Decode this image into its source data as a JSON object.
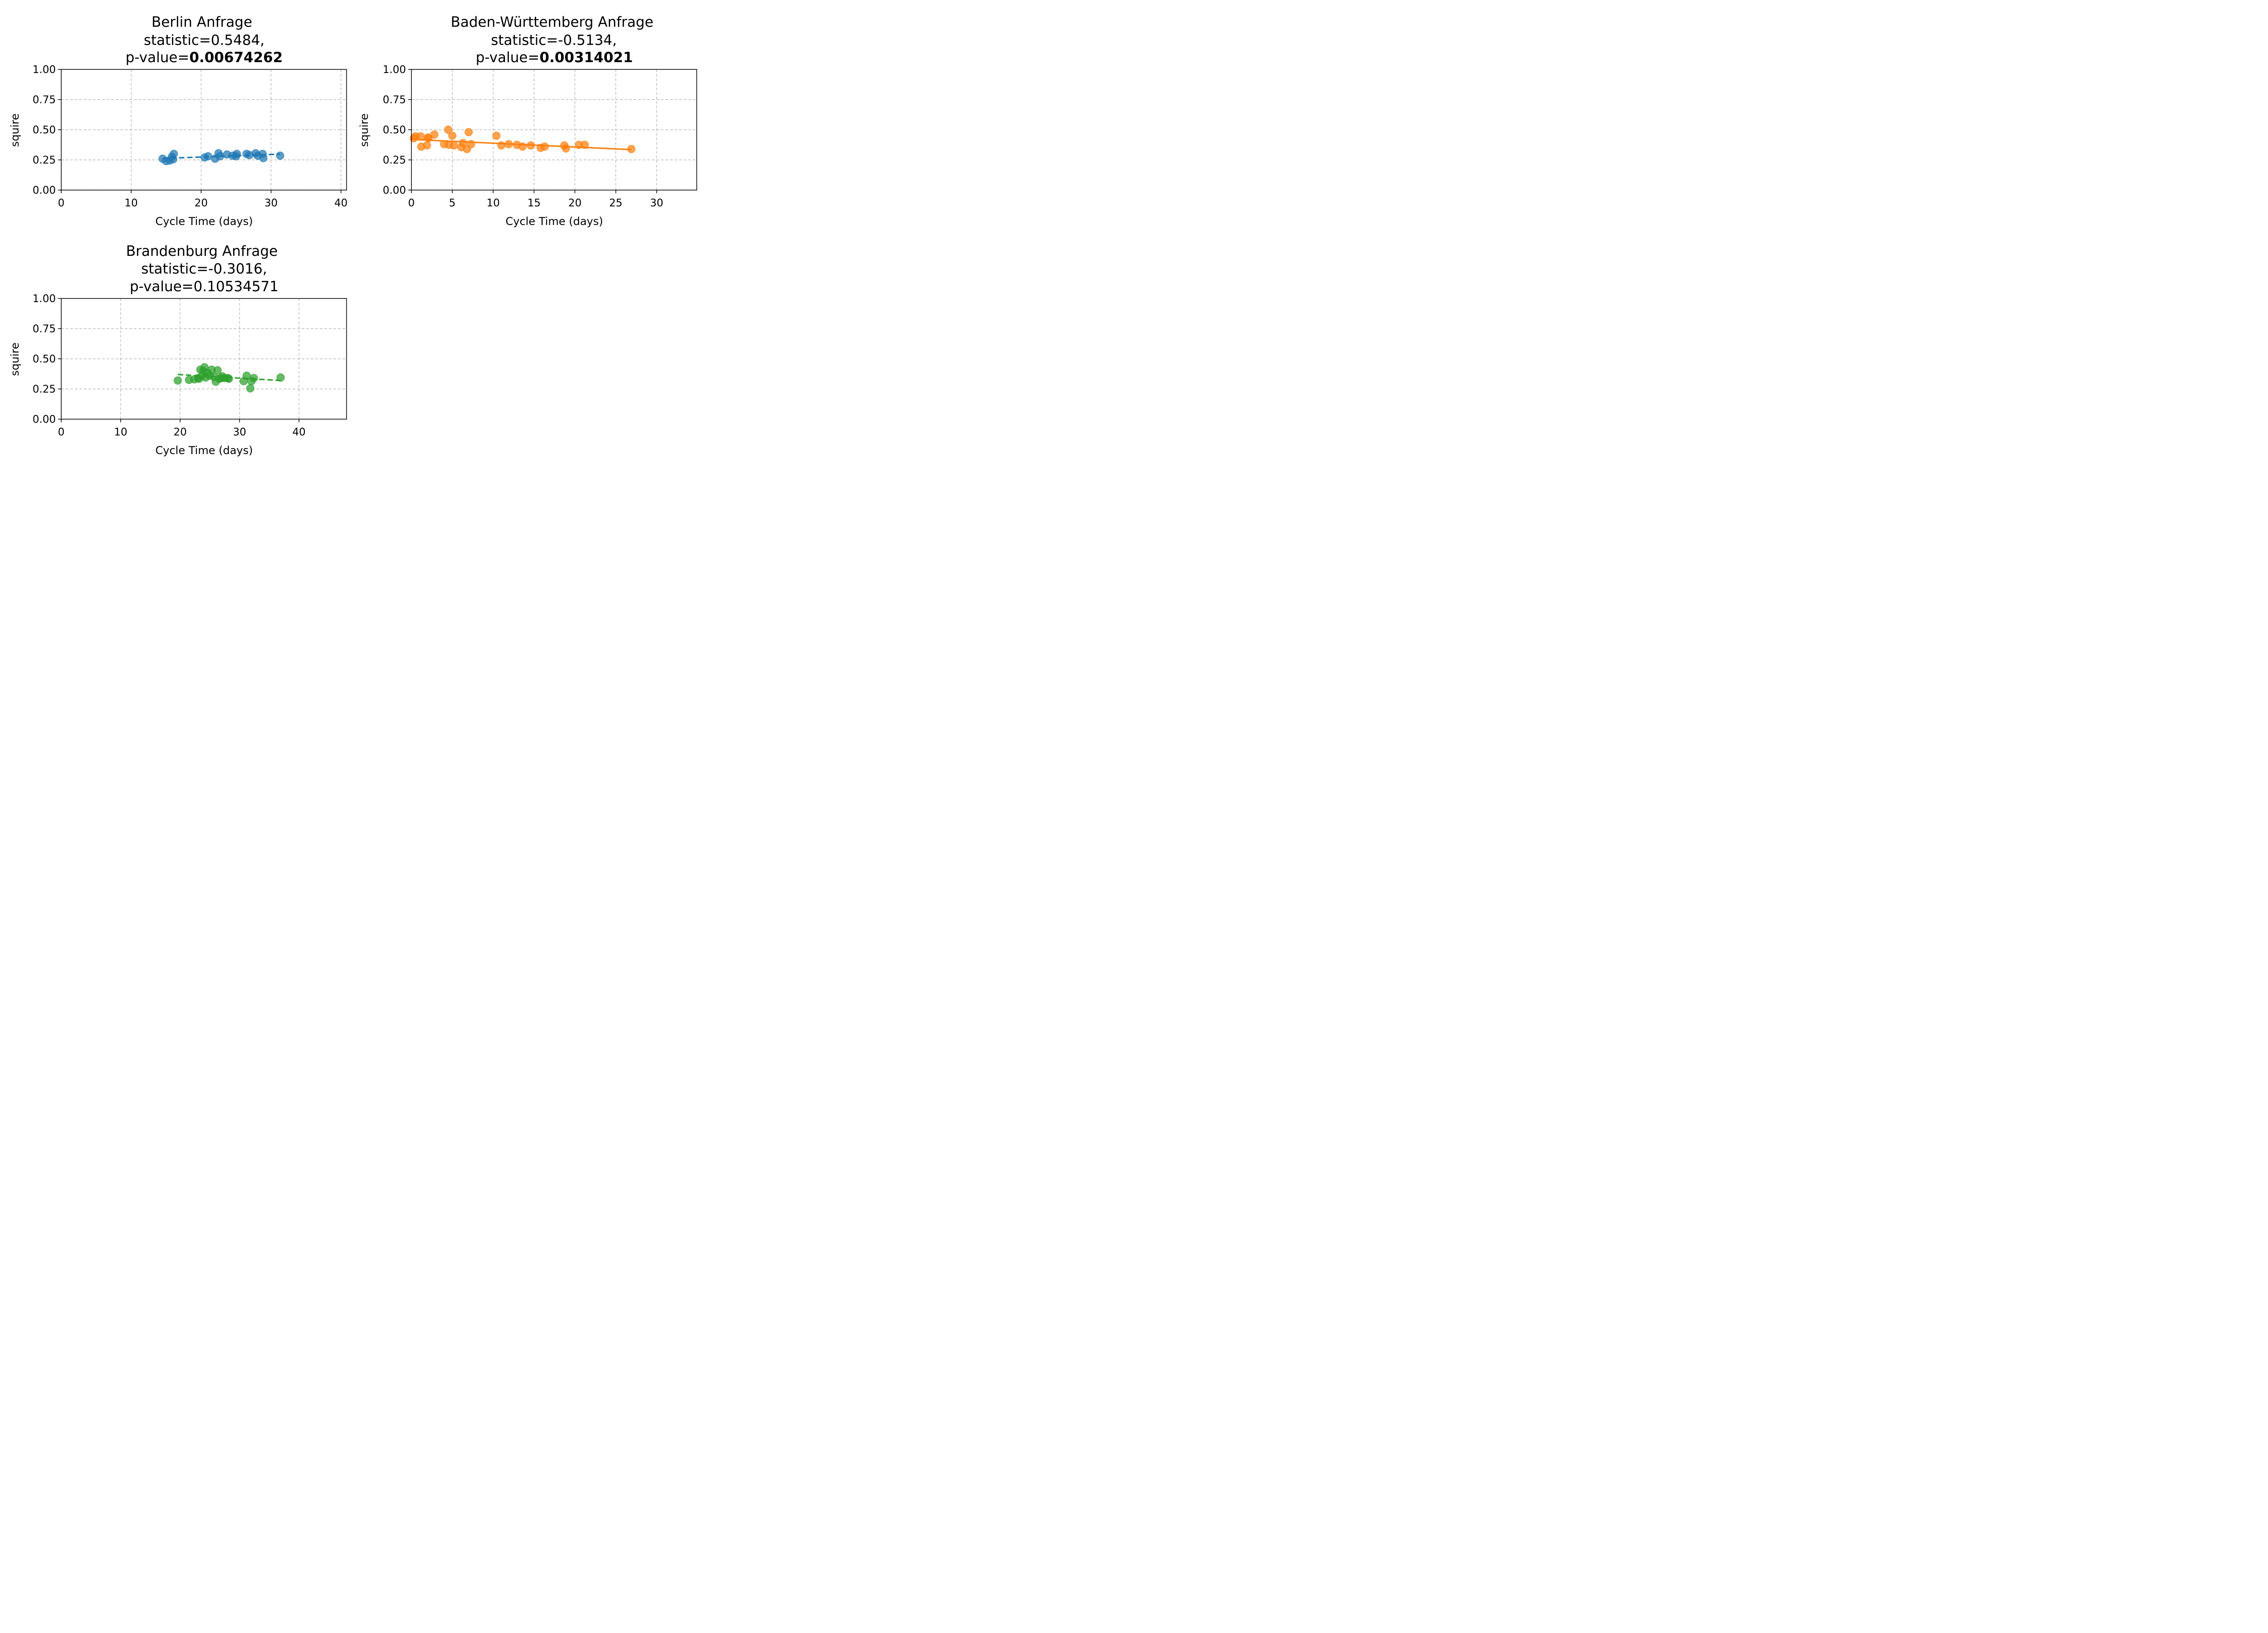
{
  "chart_data": [
    {
      "type": "scatter",
      "title_line1": "Berlin Anfrage",
      "title_line2": "statistic=0.5484,",
      "title_line3_prefix": "p-value=",
      "title_line3_value": "0.00674262",
      "pvalue_bold": true,
      "xlabel": "Cycle Time (days)",
      "ylabel": "squire",
      "xlim": [
        0,
        40.8
      ],
      "ylim": [
        0,
        1
      ],
      "xticks": [
        "0",
        "10",
        "20",
        "30",
        "40"
      ],
      "yticks": [
        "0.00",
        "0.25",
        "0.50",
        "0.75",
        "1.00"
      ],
      "grid": true,
      "color": "#1f77b4",
      "fit_style": "dashed",
      "fit": {
        "x": [
          14.5,
          31.3
        ],
        "y": [
          0.262,
          0.298
        ]
      },
      "points": {
        "x": [
          14.5,
          15.0,
          15.5,
          15.8,
          16.0,
          16.1,
          20.5,
          21.0,
          22.0,
          22.5,
          22.7,
          23.7,
          24.5,
          25.0,
          25.1,
          26.5,
          26.9,
          27.8,
          28.1,
          28.8,
          28.9,
          31.3
        ],
        "y": [
          0.26,
          0.24,
          0.245,
          0.275,
          0.255,
          0.3,
          0.27,
          0.28,
          0.26,
          0.305,
          0.28,
          0.295,
          0.285,
          0.28,
          0.3,
          0.3,
          0.29,
          0.305,
          0.285,
          0.3,
          0.265,
          0.285
        ]
      }
    },
    {
      "type": "scatter",
      "title_line1": "Baden-Württemberg Anfrage",
      "title_line2": "statistic=-0.5134,",
      "title_line3_prefix": "p-value=",
      "title_line3_value": "0.00314021",
      "pvalue_bold": true,
      "xlabel": "Cycle Time (days)",
      "ylabel": "squire",
      "xlim": [
        0,
        34.9
      ],
      "ylim": [
        0,
        1
      ],
      "xticks": [
        "0",
        "5",
        "10",
        "15",
        "20",
        "25",
        "30"
      ],
      "yticks": [
        "0.00",
        "0.25",
        "0.50",
        "0.75",
        "1.00"
      ],
      "grid": true,
      "color": "#ff7f0e",
      "fit_style": "solid",
      "fit": {
        "x": [
          0.0,
          26.9
        ],
        "y": [
          0.42,
          0.335
        ]
      },
      "points": {
        "x": [
          0.3,
          0.5,
          1.1,
          1.2,
          1.9,
          2.0,
          2.1,
          2.8,
          4.0,
          4.5,
          4.6,
          5.0,
          5.2,
          6.1,
          6.3,
          6.8,
          7.0,
          7.3,
          10.4,
          11.0,
          11.9,
          12.9,
          13.6,
          14.6,
          15.8,
          16.3,
          18.7,
          18.9,
          20.5,
          21.2,
          26.9
        ],
        "y": [
          0.43,
          0.445,
          0.445,
          0.36,
          0.37,
          0.435,
          0.43,
          0.46,
          0.38,
          0.5,
          0.375,
          0.45,
          0.37,
          0.355,
          0.39,
          0.34,
          0.48,
          0.38,
          0.45,
          0.37,
          0.38,
          0.375,
          0.36,
          0.37,
          0.35,
          0.36,
          0.37,
          0.345,
          0.375,
          0.375,
          0.34
        ]
      }
    },
    {
      "type": "scatter",
      "title_line1": "Brandenburg Anfrage",
      "title_line2": "statistic=-0.3016,",
      "title_line3_prefix": "p-value=",
      "title_line3_value": "0.10534571",
      "pvalue_bold": false,
      "xlabel": "Cycle Time (days)",
      "ylabel": "squire",
      "xlim": [
        0,
        48
      ],
      "ylim": [
        0,
        1
      ],
      "xticks": [
        "0",
        "10",
        "20",
        "30",
        "40"
      ],
      "yticks": [
        "0.00",
        "0.25",
        "0.50",
        "0.75",
        "1.00"
      ],
      "grid": true,
      "color": "#2ca02c",
      "fit_style": "dashed",
      "fit": {
        "x": [
          19.6,
          36.9
        ],
        "y": [
          0.37,
          0.32
        ]
      },
      "points": {
        "x": [
          19.6,
          21.5,
          22.4,
          23.0,
          23.2,
          23.4,
          23.7,
          23.9,
          24.1,
          24.3,
          24.6,
          25.0,
          25.3,
          25.7,
          26.0,
          26.3,
          26.6,
          26.9,
          27.1,
          27.5,
          28.0,
          28.2,
          30.7,
          31.2,
          31.8,
          32.0,
          32.4,
          36.9
        ],
        "y": [
          0.32,
          0.325,
          0.33,
          0.34,
          0.335,
          0.41,
          0.36,
          0.4,
          0.43,
          0.345,
          0.385,
          0.36,
          0.41,
          0.35,
          0.31,
          0.405,
          0.335,
          0.34,
          0.355,
          0.34,
          0.34,
          0.335,
          0.315,
          0.36,
          0.255,
          0.315,
          0.34,
          0.345
        ]
      }
    }
  ]
}
